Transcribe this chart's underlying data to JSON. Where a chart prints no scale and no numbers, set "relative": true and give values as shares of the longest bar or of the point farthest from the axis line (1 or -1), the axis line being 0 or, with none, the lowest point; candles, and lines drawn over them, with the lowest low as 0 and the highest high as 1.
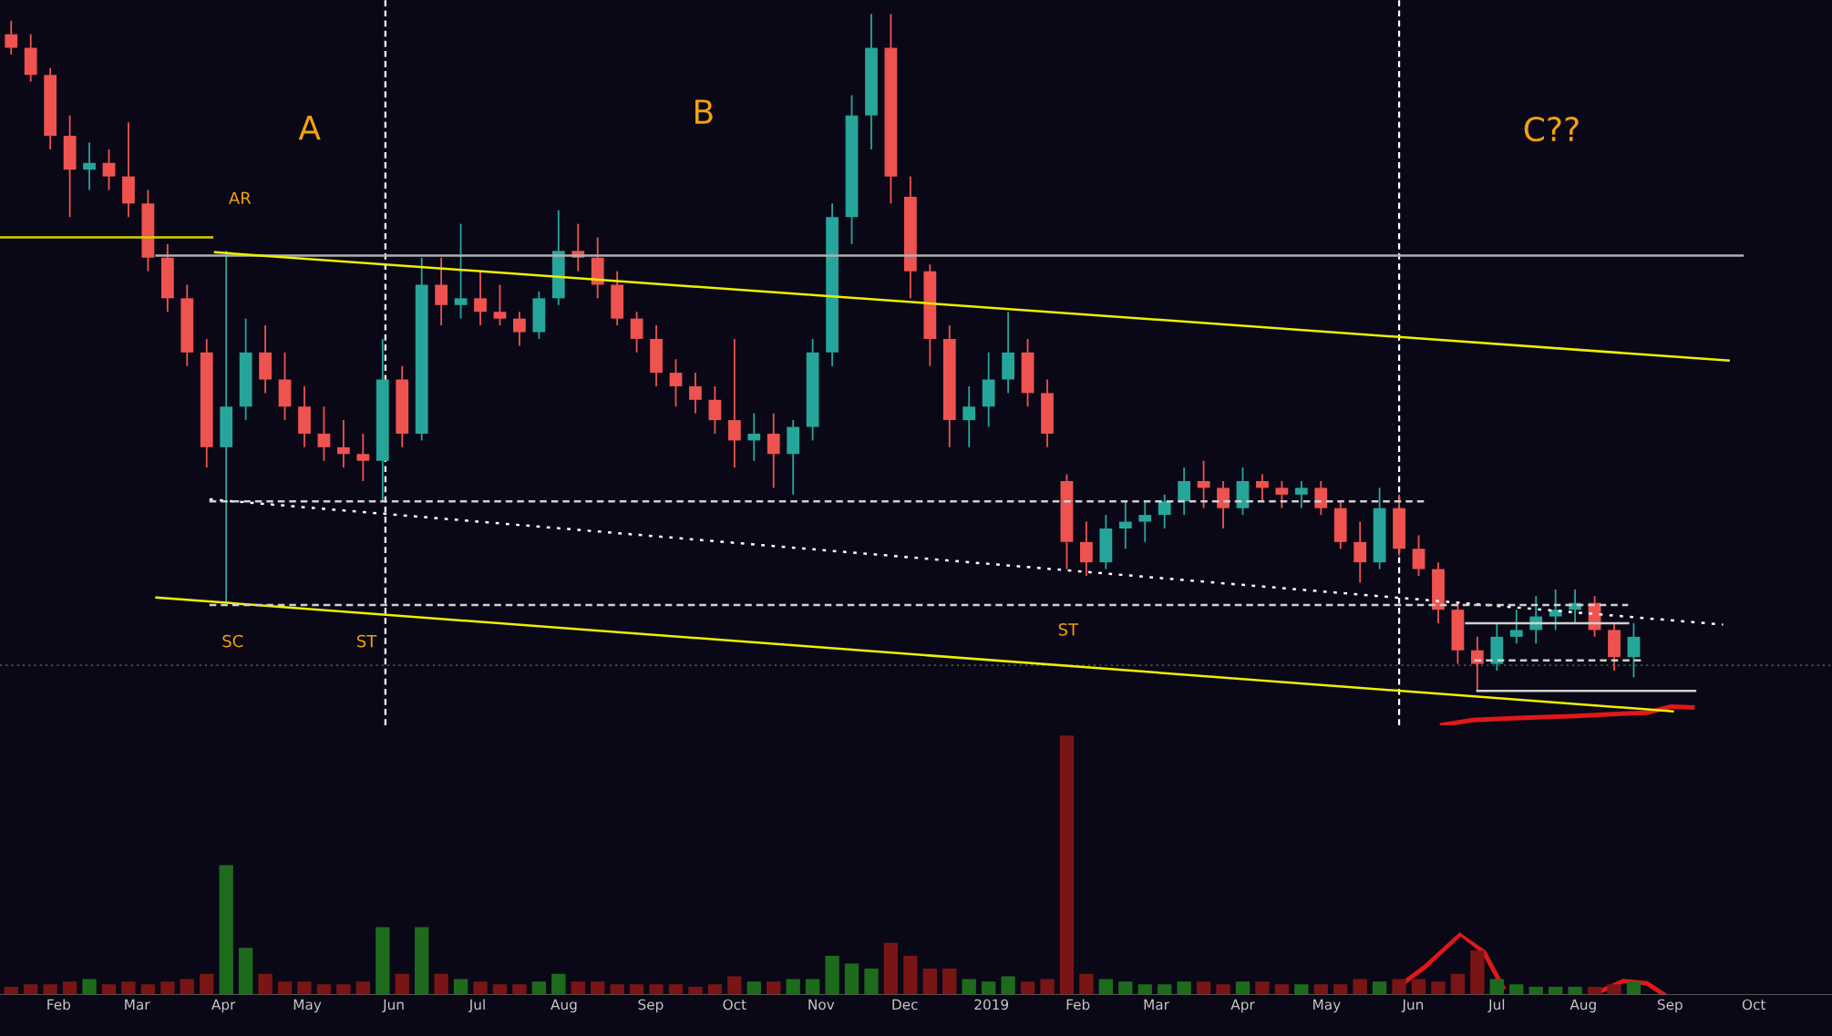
{
  "chart_data": [
    {
      "type": "candlestick",
      "relative": true,
      "tick_labels": false,
      "colors": [
        "#ef5350",
        "#ef5350",
        "#ef5350",
        "#ef5350",
        "#26a69a",
        "#ef5350",
        "#ef5350",
        "#ef5350",
        "#ef5350",
        "#ef5350",
        "#ef5350",
        "#26a69a",
        "#26a69a",
        "#ef5350",
        "#ef5350",
        "#ef5350",
        "#ef5350",
        "#ef5350",
        "#ef5350",
        "#26a69a",
        "#ef5350",
        "#26a69a",
        "#ef5350",
        "#26a69a",
        "#ef5350",
        "#ef5350",
        "#ef5350",
        "#26a69a",
        "#26a69a",
        "#ef5350",
        "#ef5350",
        "#ef5350",
        "#ef5350",
        "#ef5350",
        "#ef5350",
        "#ef5350",
        "#ef5350",
        "#ef5350",
        "#26a69a",
        "#ef5350",
        "#26a69a",
        "#26a69a",
        "#26a69a",
        "#26a69a",
        "#26a69a",
        "#ef5350",
        "#ef5350",
        "#ef5350",
        "#ef5350",
        "#26a69a",
        "#26a69a",
        "#26a69a",
        "#ef5350",
        "#ef5350",
        "#ef5350",
        "#ef5350",
        "#26a69a",
        "#26a69a",
        "#26a69a",
        "#26a69a",
        "#26a69a",
        "#ef5350",
        "#ef5350",
        "#26a69a",
        "#ef5350",
        "#ef5350",
        "#26a69a",
        "#ef5350",
        "#ef5350",
        "#ef5350",
        "#26a69a",
        "#ef5350",
        "#ef5350",
        "#ef5350",
        "#ef5350",
        "#ef5350",
        "#26a69a",
        "#26a69a",
        "#26a69a",
        "#26a69a",
        "#26a69a",
        "#ef5350",
        "#ef5350",
        "#26a69a"
      ],
      "xlim": [
        "2018-01-11",
        "2019-10-29"
      ],
      "x": [
        "2018-01-15",
        "2018-01-22",
        "2018-01-29",
        "2018-02-05",
        "2018-02-12",
        "2018-02-19",
        "2018-02-26",
        "2018-03-05",
        "2018-03-12",
        "2018-03-19",
        "2018-03-26",
        "2018-04-02",
        "2018-04-09",
        "2018-04-16",
        "2018-04-23",
        "2018-04-30",
        "2018-05-07",
        "2018-05-14",
        "2018-05-21",
        "2018-05-28",
        "2018-06-04",
        "2018-06-11",
        "2018-06-18",
        "2018-06-25",
        "2018-07-02",
        "2018-07-09",
        "2018-07-16",
        "2018-07-23",
        "2018-07-30",
        "2018-08-06",
        "2018-08-13",
        "2018-08-20",
        "2018-08-27",
        "2018-09-03",
        "2018-09-10",
        "2018-09-17",
        "2018-09-24",
        "2018-10-01",
        "2018-10-08",
        "2018-10-15",
        "2018-10-22",
        "2018-10-29",
        "2018-11-05",
        "2018-11-12",
        "2018-11-19",
        "2018-11-26",
        "2018-12-03",
        "2018-12-10",
        "2018-12-17",
        "2018-12-24",
        "2018-12-31",
        "2019-01-07",
        "2019-01-14",
        "2019-01-21",
        "2019-01-28",
        "2019-02-04",
        "2019-02-11",
        "2019-02-18",
        "2019-02-25",
        "2019-03-04",
        "2019-03-11",
        "2019-03-18",
        "2019-03-25",
        "2019-04-01",
        "2019-04-08",
        "2019-04-15",
        "2019-04-22",
        "2019-04-29",
        "2019-05-06",
        "2019-05-13",
        "2019-05-20",
        "2019-05-27",
        "2019-06-03",
        "2019-06-10",
        "2019-06-17",
        "2019-06-24",
        "2019-07-01",
        "2019-07-08",
        "2019-07-15",
        "2019-07-22",
        "2019-07-29",
        "2019-08-05",
        "2019-08-12",
        "2019-08-19"
      ],
      "ohlc": [
        [
          0.97,
          0.99,
          0.94,
          0.95
        ],
        [
          0.95,
          0.97,
          0.9,
          0.91
        ],
        [
          0.91,
          0.92,
          0.8,
          0.82
        ],
        [
          0.82,
          0.85,
          0.7,
          0.77
        ],
        [
          0.77,
          0.81,
          0.74,
          0.78
        ],
        [
          0.78,
          0.8,
          0.74,
          0.76
        ],
        [
          0.76,
          0.84,
          0.7,
          0.72
        ],
        [
          0.72,
          0.74,
          0.62,
          0.64
        ],
        [
          0.64,
          0.66,
          0.56,
          0.58
        ],
        [
          0.58,
          0.6,
          0.48,
          0.5
        ],
        [
          0.5,
          0.52,
          0.33,
          0.36
        ],
        [
          0.36,
          0.65,
          0.13,
          0.42
        ],
        [
          0.42,
          0.55,
          0.4,
          0.5
        ],
        [
          0.5,
          0.54,
          0.44,
          0.46
        ],
        [
          0.46,
          0.5,
          0.4,
          0.42
        ],
        [
          0.42,
          0.45,
          0.36,
          0.38
        ],
        [
          0.38,
          0.42,
          0.34,
          0.36
        ],
        [
          0.36,
          0.4,
          0.33,
          0.35
        ],
        [
          0.35,
          0.38,
          0.31,
          0.34
        ],
        [
          0.34,
          0.52,
          0.28,
          0.46
        ],
        [
          0.46,
          0.48,
          0.36,
          0.38
        ],
        [
          0.38,
          0.64,
          0.37,
          0.6
        ],
        [
          0.6,
          0.64,
          0.54,
          0.57
        ],
        [
          0.57,
          0.69,
          0.55,
          0.58
        ],
        [
          0.58,
          0.62,
          0.54,
          0.56
        ],
        [
          0.56,
          0.6,
          0.54,
          0.55
        ],
        [
          0.55,
          0.56,
          0.51,
          0.53
        ],
        [
          0.53,
          0.59,
          0.52,
          0.58
        ],
        [
          0.58,
          0.71,
          0.57,
          0.65
        ],
        [
          0.65,
          0.69,
          0.62,
          0.64
        ],
        [
          0.64,
          0.67,
          0.58,
          0.6
        ],
        [
          0.6,
          0.62,
          0.54,
          0.55
        ],
        [
          0.55,
          0.56,
          0.5,
          0.52
        ],
        [
          0.52,
          0.54,
          0.45,
          0.47
        ],
        [
          0.47,
          0.49,
          0.42,
          0.45
        ],
        [
          0.45,
          0.47,
          0.41,
          0.43
        ],
        [
          0.43,
          0.45,
          0.38,
          0.4
        ],
        [
          0.4,
          0.52,
          0.33,
          0.37
        ],
        [
          0.37,
          0.41,
          0.34,
          0.38
        ],
        [
          0.38,
          0.41,
          0.3,
          0.35
        ],
        [
          0.35,
          0.4,
          0.29,
          0.39
        ],
        [
          0.39,
          0.52,
          0.37,
          0.5
        ],
        [
          0.5,
          0.72,
          0.48,
          0.7
        ],
        [
          0.7,
          0.88,
          0.66,
          0.85
        ],
        [
          0.85,
          1.0,
          0.8,
          0.95
        ],
        [
          0.95,
          1.0,
          0.72,
          0.76
        ],
        [
          0.73,
          0.76,
          0.58,
          0.62
        ],
        [
          0.62,
          0.63,
          0.48,
          0.52
        ],
        [
          0.52,
          0.54,
          0.36,
          0.4
        ],
        [
          0.4,
          0.45,
          0.36,
          0.42
        ],
        [
          0.42,
          0.5,
          0.39,
          0.46
        ],
        [
          0.46,
          0.56,
          0.44,
          0.5
        ],
        [
          0.5,
          0.52,
          0.42,
          0.44
        ],
        [
          0.44,
          0.46,
          0.36,
          0.38
        ],
        [
          0.31,
          0.32,
          0.18,
          0.22
        ],
        [
          0.22,
          0.25,
          0.17,
          0.19
        ],
        [
          0.19,
          0.26,
          0.18,
          0.24
        ],
        [
          0.24,
          0.28,
          0.21,
          0.25
        ],
        [
          0.25,
          0.28,
          0.22,
          0.26
        ],
        [
          0.26,
          0.29,
          0.24,
          0.28
        ],
        [
          0.28,
          0.33,
          0.26,
          0.31
        ],
        [
          0.31,
          0.34,
          0.27,
          0.3
        ],
        [
          0.3,
          0.31,
          0.24,
          0.27
        ],
        [
          0.27,
          0.33,
          0.26,
          0.31
        ],
        [
          0.31,
          0.32,
          0.28,
          0.3
        ],
        [
          0.3,
          0.31,
          0.27,
          0.29
        ],
        [
          0.29,
          0.31,
          0.27,
          0.3
        ],
        [
          0.3,
          0.31,
          0.26,
          0.27
        ],
        [
          0.27,
          0.28,
          0.21,
          0.22
        ],
        [
          0.22,
          0.25,
          0.16,
          0.19
        ],
        [
          0.19,
          0.3,
          0.18,
          0.27
        ],
        [
          0.27,
          0.29,
          0.2,
          0.21
        ],
        [
          0.21,
          0.23,
          0.17,
          0.18
        ],
        [
          0.18,
          0.19,
          0.1,
          0.12
        ],
        [
          0.12,
          0.13,
          0.04,
          0.06
        ],
        [
          0.06,
          0.08,
          0.0,
          0.04
        ],
        [
          0.04,
          0.1,
          0.03,
          0.08
        ],
        [
          0.08,
          0.12,
          0.07,
          0.09
        ],
        [
          0.09,
          0.14,
          0.07,
          0.11
        ],
        [
          0.11,
          0.15,
          0.09,
          0.12
        ],
        [
          0.12,
          0.15,
          0.1,
          0.13
        ],
        [
          0.13,
          0.14,
          0.08,
          0.09
        ],
        [
          0.09,
          0.1,
          0.03,
          0.05
        ],
        [
          0.05,
          0.1,
          0.02,
          0.08
        ]
      ],
      "series": [
        {
          "type": "line",
          "x": [
            "2018-01-11",
            "2018-03-28"
          ],
          "values": [
            0.67,
            0.67
          ],
          "color": "#d4d400",
          "line_style": "solid"
        },
        {
          "type": "line",
          "x": [
            "2018-03-08",
            "2019-09-27"
          ],
          "values": [
            0.643,
            0.643
          ],
          "color": "#b0b0b0",
          "line_style": "solid"
        },
        {
          "type": "line",
          "x": [
            "2018-03-29",
            "2019-09-22"
          ],
          "values": [
            0.648,
            0.488
          ],
          "color": "#f0f000",
          "line_style": "solid"
        },
        {
          "type": "line",
          "x": [
            "2018-03-08",
            "2019-09-02"
          ],
          "values": [
            0.138,
            -0.03
          ],
          "color": "#f0f000",
          "line_style": "solid"
        },
        {
          "type": "line",
          "x": [
            "2018-03-27",
            "2019-09-20"
          ],
          "values": [
            0.283,
            0.098
          ],
          "color": "#ffffff",
          "line_style": "dotted"
        },
        {
          "type": "line",
          "x": [
            "2018-03-27",
            "2019-06-05"
          ],
          "values": [
            0.28,
            0.28
          ],
          "color": "#d0d0d0",
          "line_style": "dashed"
        },
        {
          "type": "line",
          "x": [
            "2018-03-27",
            "2019-08-17"
          ],
          "values": [
            0.127,
            0.127
          ],
          "color": "#d0d0d0",
          "line_style": "dashed"
        },
        {
          "type": "line",
          "x": [
            "2019-06-20",
            "2019-08-17"
          ],
          "values": [
            0.1,
            0.1
          ],
          "color": "#d0d0d0",
          "line_style": "solid"
        },
        {
          "type": "line",
          "x": [
            "2019-06-23",
            "2019-08-23"
          ],
          "values": [
            0.045,
            0.045
          ],
          "color": "#d0d0d0",
          "line_style": "dashed"
        },
        {
          "type": "line",
          "x": [
            "2019-06-24",
            "2019-09-10"
          ],
          "values": [
            0.0,
            0.0
          ],
          "color": "#d0d0d0",
          "line_style": "solid"
        }
      ],
      "ref_lines": [
        {
          "axis": "y",
          "value": 0.038,
          "label": null,
          "color": "#5f7f5f",
          "line_style": "dotted"
        },
        {
          "axis": "x",
          "value": "2018-05-29",
          "label": null,
          "color": "#ffffff",
          "line_style": "dashed"
        },
        {
          "axis": "x",
          "value": "2019-05-27",
          "label": null,
          "color": "#ffffff",
          "line_style": "dashed"
        }
      ],
      "annotations": [
        "A",
        "B",
        "C??",
        "AR",
        "SC",
        "ST",
        "ST"
      ]
    },
    {
      "type": "bar",
      "relative": true,
      "tick_labels": "x",
      "xlim": [
        "2018-01-11",
        "2019-10-29"
      ],
      "xticks": [
        {
          "value": "2018-02-01",
          "label": "Feb"
        },
        {
          "value": "2018-03-01",
          "label": "Mar"
        },
        {
          "value": "2018-04-01",
          "label": "Apr"
        },
        {
          "value": "2018-05-01",
          "label": "May"
        },
        {
          "value": "2018-06-01",
          "label": "Jun"
        },
        {
          "value": "2018-07-01",
          "label": "Jul"
        },
        {
          "value": "2018-08-01",
          "label": "Aug"
        },
        {
          "value": "2018-09-01",
          "label": "Sep"
        },
        {
          "value": "2018-10-01",
          "label": "Oct"
        },
        {
          "value": "2018-11-01",
          "label": "Nov"
        },
        {
          "value": "2018-12-01",
          "label": "Dec"
        },
        {
          "value": "2019-01-01",
          "label": "2019"
        },
        {
          "value": "2019-02-01",
          "label": "Feb"
        },
        {
          "value": "2019-03-01",
          "label": "Mar"
        },
        {
          "value": "2019-04-01",
          "label": "Apr"
        },
        {
          "value": "2019-05-01",
          "label": "May"
        },
        {
          "value": "2019-06-01",
          "label": "Jun"
        },
        {
          "value": "2019-07-01",
          "label": "Jul"
        },
        {
          "value": "2019-08-01",
          "label": "Aug"
        },
        {
          "value": "2019-09-01",
          "label": "Sep"
        },
        {
          "value": "2019-10-01",
          "label": "Oct"
        }
      ],
      "x": [
        "2018-01-15",
        "2018-01-22",
        "2018-01-29",
        "2018-02-05",
        "2018-02-12",
        "2018-02-19",
        "2018-02-26",
        "2018-03-05",
        "2018-03-12",
        "2018-03-19",
        "2018-03-26",
        "2018-04-02",
        "2018-04-09",
        "2018-04-16",
        "2018-04-23",
        "2018-04-30",
        "2018-05-07",
        "2018-05-14",
        "2018-05-21",
        "2018-05-28",
        "2018-06-04",
        "2018-06-11",
        "2018-06-18",
        "2018-06-25",
        "2018-07-02",
        "2018-07-09",
        "2018-07-16",
        "2018-07-23",
        "2018-07-30",
        "2018-08-06",
        "2018-08-13",
        "2018-08-20",
        "2018-08-27",
        "2018-09-03",
        "2018-09-10",
        "2018-09-17",
        "2018-09-24",
        "2018-10-01",
        "2018-10-08",
        "2018-10-15",
        "2018-10-22",
        "2018-10-29",
        "2018-11-05",
        "2018-11-12",
        "2018-11-19",
        "2018-11-26",
        "2018-12-03",
        "2018-12-10",
        "2018-12-17",
        "2018-12-24",
        "2018-12-31",
        "2019-01-07",
        "2019-01-14",
        "2019-01-21",
        "2019-01-28",
        "2019-02-04",
        "2019-02-11",
        "2019-02-18",
        "2019-02-25",
        "2019-03-04",
        "2019-03-11",
        "2019-03-18",
        "2019-03-25",
        "2019-04-01",
        "2019-04-08",
        "2019-04-15",
        "2019-04-22",
        "2019-04-29",
        "2019-05-06",
        "2019-05-13",
        "2019-05-20",
        "2019-05-27",
        "2019-06-03",
        "2019-06-10",
        "2019-06-17",
        "2019-06-24",
        "2019-07-01",
        "2019-07-08",
        "2019-07-15",
        "2019-07-22",
        "2019-07-29",
        "2019-08-05",
        "2019-08-12",
        "2019-08-19"
      ],
      "values": [
        0.03,
        0.04,
        0.04,
        0.05,
        0.06,
        0.04,
        0.05,
        0.04,
        0.05,
        0.06,
        0.08,
        0.5,
        0.18,
        0.08,
        0.05,
        0.05,
        0.04,
        0.04,
        0.05,
        0.26,
        0.08,
        0.26,
        0.08,
        0.06,
        0.05,
        0.04,
        0.04,
        0.05,
        0.08,
        0.05,
        0.05,
        0.04,
        0.04,
        0.04,
        0.04,
        0.03,
        0.04,
        0.07,
        0.05,
        0.05,
        0.06,
        0.06,
        0.15,
        0.12,
        0.1,
        0.2,
        0.15,
        0.1,
        0.1,
        0.06,
        0.05,
        0.07,
        0.05,
        0.06,
        1.0,
        0.08,
        0.06,
        0.05,
        0.04,
        0.04,
        0.05,
        0.05,
        0.04,
        0.05,
        0.05,
        0.04,
        0.04,
        0.04,
        0.04,
        0.06,
        0.05,
        0.06,
        0.06,
        0.05,
        0.08,
        0.17,
        0.06,
        0.04,
        0.03,
        0.03,
        0.03,
        0.03,
        0.04,
        0.05
      ],
      "colors": [
        "#7a1515",
        "#7a1515",
        "#7a1515",
        "#7a1515",
        "#1e6b1e",
        "#7a1515",
        "#7a1515",
        "#7a1515",
        "#7a1515",
        "#7a1515",
        "#7a1515",
        "#1e6b1e",
        "#1e6b1e",
        "#7a1515",
        "#7a1515",
        "#7a1515",
        "#7a1515",
        "#7a1515",
        "#7a1515",
        "#1e6b1e",
        "#7a1515",
        "#1e6b1e",
        "#7a1515",
        "#1e6b1e",
        "#7a1515",
        "#7a1515",
        "#7a1515",
        "#1e6b1e",
        "#1e6b1e",
        "#7a1515",
        "#7a1515",
        "#7a1515",
        "#7a1515",
        "#7a1515",
        "#7a1515",
        "#7a1515",
        "#7a1515",
        "#7a1515",
        "#1e6b1e",
        "#7a1515",
        "#1e6b1e",
        "#1e6b1e",
        "#1e6b1e",
        "#1e6b1e",
        "#1e6b1e",
        "#7a1515",
        "#7a1515",
        "#7a1515",
        "#7a1515",
        "#1e6b1e",
        "#1e6b1e",
        "#1e6b1e",
        "#7a1515",
        "#7a1515",
        "#7a1515",
        "#7a1515",
        "#1e6b1e",
        "#1e6b1e",
        "#1e6b1e",
        "#1e6b1e",
        "#1e6b1e",
        "#7a1515",
        "#7a1515",
        "#1e6b1e",
        "#7a1515",
        "#7a1515",
        "#1e6b1e",
        "#7a1515",
        "#7a1515",
        "#7a1515",
        "#1e6b1e",
        "#7a1515",
        "#7a1515",
        "#7a1515",
        "#7a1515",
        "#7a1515",
        "#1e6b1e",
        "#1e6b1e",
        "#1e6b1e",
        "#1e6b1e",
        "#1e6b1e",
        "#7a1515",
        "#7a1515",
        "#1e6b1e"
      ]
    }
  ]
}
